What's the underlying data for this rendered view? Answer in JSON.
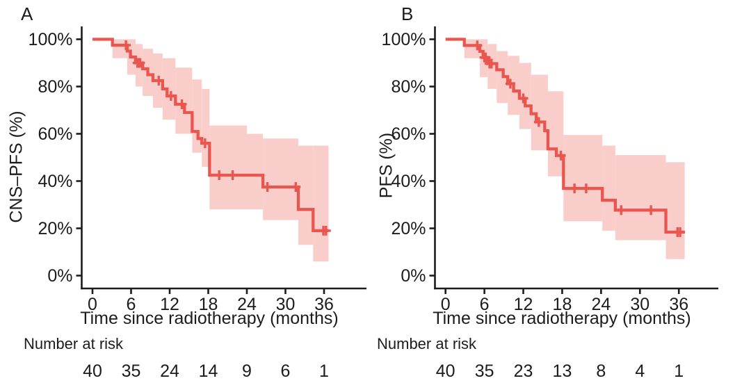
{
  "figure": {
    "background": "#ffffff",
    "text_color": "#1c1c1c"
  },
  "chart_data": [
    {
      "panel_label": "A",
      "type": "line",
      "km_style": "kaplan-meier-step-with-confidence-band",
      "title": "",
      "xlabel": "Time since radiotherapy (months)",
      "ylabel": "CNS–PFS (%)",
      "xticks": [
        0,
        6,
        12,
        18,
        24,
        30,
        36
      ],
      "yticks_percent": [
        0,
        20,
        40,
        60,
        80,
        100
      ],
      "xlim": [
        0,
        39
      ],
      "ylim_percent": [
        0,
        100
      ],
      "grid": false,
      "line_color": "#e9564f",
      "band_color": "#f9cdca",
      "survival_steps": [
        [
          0,
          100
        ],
        [
          3.1,
          97.5
        ],
        [
          5.4,
          95
        ],
        [
          5.9,
          92.5
        ],
        [
          6.7,
          90
        ],
        [
          7.8,
          87.5
        ],
        [
          8.6,
          85
        ],
        [
          9.4,
          82.5
        ],
        [
          10.9,
          79
        ],
        [
          11.6,
          76
        ],
        [
          12.9,
          72.5
        ],
        [
          14.3,
          69
        ],
        [
          15.5,
          61
        ],
        [
          16.4,
          58
        ],
        [
          17.0,
          56
        ],
        [
          18.2,
          42.5
        ],
        [
          26.5,
          37.5
        ],
        [
          32.0,
          28
        ],
        [
          34.3,
          19
        ]
      ],
      "end_time": 36.7,
      "censor_marks": [
        [
          5.2,
          97.5
        ],
        [
          7.0,
          90
        ],
        [
          7.2,
          90
        ],
        [
          7.4,
          90
        ],
        [
          10.3,
          82.5
        ],
        [
          12.2,
          76
        ],
        [
          13.9,
          72.5
        ],
        [
          17.5,
          56
        ],
        [
          19.7,
          42.5
        ],
        [
          21.8,
          42.5
        ],
        [
          27.2,
          37.5
        ],
        [
          31.6,
          37.5
        ],
        [
          35.9,
          19
        ],
        [
          36.3,
          19
        ]
      ],
      "ci_band_segments": [
        [
          3.1,
          5.4,
          100,
          92
        ],
        [
          5.4,
          6.7,
          100,
          85
        ],
        [
          6.7,
          7.8,
          98,
          80
        ],
        [
          7.8,
          9.4,
          96,
          76
        ],
        [
          9.4,
          10.9,
          94,
          71
        ],
        [
          10.9,
          12.9,
          92,
          66
        ],
        [
          12.9,
          15.5,
          88,
          60
        ],
        [
          15.5,
          17.0,
          83,
          52
        ],
        [
          17.0,
          18.2,
          79,
          46
        ],
        [
          18.2,
          24.0,
          63.5,
          28
        ],
        [
          24.0,
          26.5,
          60,
          28
        ],
        [
          26.5,
          32.0,
          58,
          23.5
        ],
        [
          32.0,
          34.3,
          55,
          13
        ],
        [
          34.3,
          36.7,
          55,
          6
        ]
      ],
      "number_at_risk": {
        "label": "Number at risk",
        "times": [
          0,
          6,
          12,
          18,
          24,
          30,
          36
        ],
        "counts": [
          40,
          35,
          24,
          14,
          9,
          6,
          1
        ]
      }
    },
    {
      "panel_label": "B",
      "type": "line",
      "km_style": "kaplan-meier-step-with-confidence-band",
      "title": "",
      "xlabel": "Time since radiotherapy (months)",
      "ylabel": "PFS (%)",
      "xticks": [
        0,
        6,
        12,
        18,
        24,
        30,
        36
      ],
      "yticks_percent": [
        0,
        20,
        40,
        60,
        80,
        100
      ],
      "xlim": [
        0,
        39
      ],
      "ylim_percent": [
        0,
        100
      ],
      "grid": false,
      "line_color": "#e9564f",
      "band_color": "#f9cdca",
      "survival_steps": [
        [
          0,
          100
        ],
        [
          2.9,
          97.4
        ],
        [
          5.3,
          94.9
        ],
        [
          5.8,
          92.3
        ],
        [
          6.5,
          89.7
        ],
        [
          7.9,
          87.1
        ],
        [
          8.9,
          84.2
        ],
        [
          9.6,
          81.2
        ],
        [
          10.5,
          78.1
        ],
        [
          11.4,
          75
        ],
        [
          12.3,
          71.8
        ],
        [
          13.2,
          68.5
        ],
        [
          14.0,
          65
        ],
        [
          15.3,
          61.3
        ],
        [
          15.8,
          53.6
        ],
        [
          17.1,
          50.8
        ],
        [
          18.2,
          36.9
        ],
        [
          24.2,
          31.9
        ],
        [
          26.2,
          27.7
        ],
        [
          34.0,
          18.4
        ]
      ],
      "end_time": 36.9,
      "censor_marks": [
        [
          4.9,
          97.4
        ],
        [
          6.0,
          92.3
        ],
        [
          6.2,
          92.3
        ],
        [
          6.8,
          89.7
        ],
        [
          7.1,
          89.7
        ],
        [
          10.0,
          81.2
        ],
        [
          12.0,
          75
        ],
        [
          14.4,
          65
        ],
        [
          17.8,
          50.8
        ],
        [
          19.9,
          36.9
        ],
        [
          21.7,
          36.9
        ],
        [
          27.1,
          27.7
        ],
        [
          31.7,
          27.7
        ],
        [
          35.8,
          18.4
        ],
        [
          36.2,
          18.4
        ]
      ],
      "ci_band_segments": [
        [
          2.9,
          5.3,
          100,
          92
        ],
        [
          5.3,
          6.5,
          100,
          84
        ],
        [
          6.5,
          7.9,
          98,
          79
        ],
        [
          7.9,
          9.6,
          95,
          73
        ],
        [
          9.6,
          11.4,
          93,
          68
        ],
        [
          11.4,
          13.2,
          90,
          62
        ],
        [
          13.2,
          15.8,
          85,
          53
        ],
        [
          15.8,
          18.2,
          78,
          42
        ],
        [
          18.2,
          24.2,
          59.5,
          23
        ],
        [
          24.2,
          26.2,
          55,
          19
        ],
        [
          26.2,
          34.0,
          51,
          15
        ],
        [
          34.0,
          36.9,
          48,
          7
        ]
      ],
      "number_at_risk": {
        "label": "Number at risk",
        "times": [
          0,
          6,
          12,
          18,
          24,
          30,
          36
        ],
        "counts": [
          40,
          35,
          23,
          13,
          8,
          4,
          1
        ]
      }
    }
  ]
}
